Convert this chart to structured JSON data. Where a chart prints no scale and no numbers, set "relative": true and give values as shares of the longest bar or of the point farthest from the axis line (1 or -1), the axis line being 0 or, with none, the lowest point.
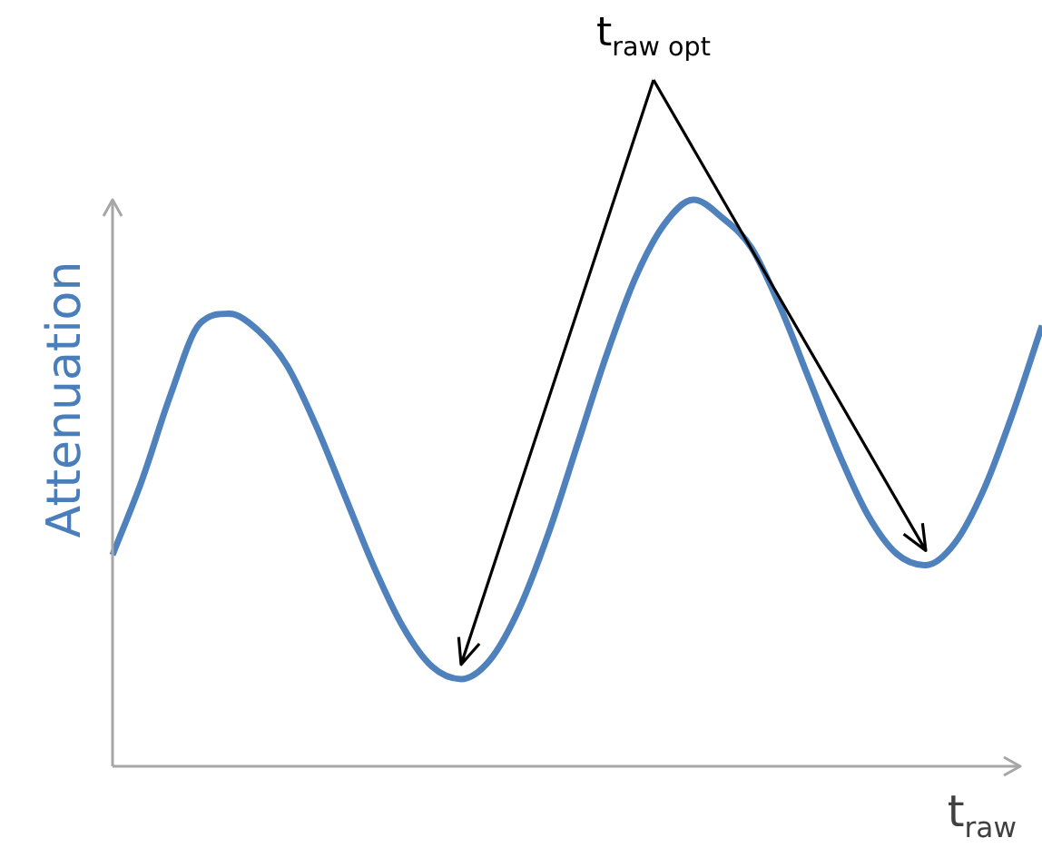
{
  "chart_data": {
    "type": "line",
    "relative": true,
    "xlabel": "t$_{raw}$",
    "ylabel": "Attenuation",
    "annotations": [
      "t$_{raw opt}$"
    ],
    "marker": "none",
    "legend": false,
    "categories": [
      null,
      null,
      null,
      null,
      null,
      null,
      null,
      null,
      null,
      null,
      null,
      null,
      null,
      null,
      null,
      null,
      null,
      null,
      null,
      null,
      null,
      null,
      null,
      null,
      null,
      null,
      null,
      null,
      null,
      null,
      null,
      null,
      null
    ],
    "series": [
      {
        "color": "#4f81bd",
        "values": [
          0.373,
          0.503,
          0.656,
          0.781,
          0.799,
          0.77,
          0.708,
          0.602,
          0.477,
          0.352,
          0.246,
          0.176,
          0.154,
          0.188,
          0.278,
          0.41,
          0.567,
          0.725,
          0.862,
          0.957,
          1.0,
          0.968,
          0.915,
          0.809,
          0.681,
          0.553,
          0.444,
          0.375,
          0.355,
          0.394,
          0.489,
          0.624,
          0.778
        ]
      }
    ]
  }
}
